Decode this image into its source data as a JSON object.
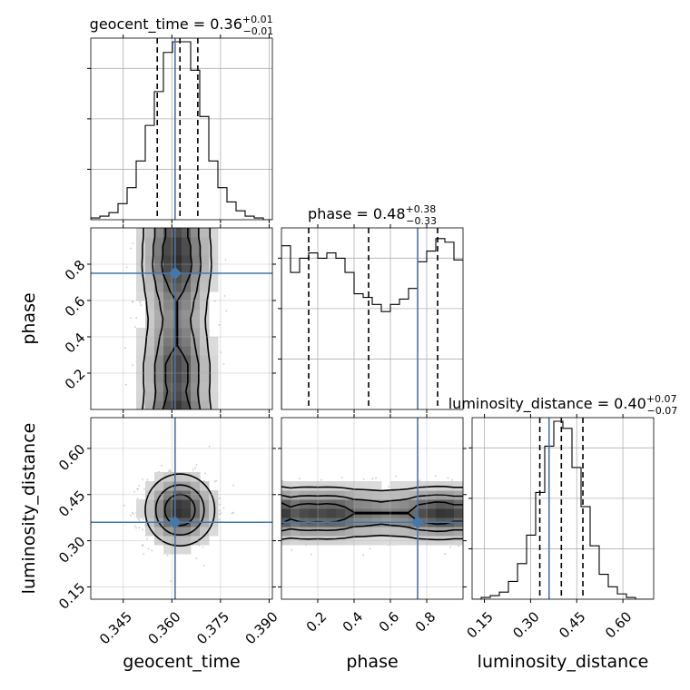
{
  "chart_data": {
    "type": "corner",
    "parameters": [
      "geocent_time",
      "phase",
      "luminosity_distance"
    ],
    "axis_labels": [
      "geocent_time",
      "phase",
      "luminosity_distance"
    ],
    "truths": [
      0.361,
      0.75,
      0.36
    ],
    "truth_color": "#4477aa",
    "ranges": [
      [
        0.335,
        0.391
      ],
      [
        0.0,
        1.0
      ],
      [
        0.11,
        0.7
      ]
    ],
    "ticks": [
      [
        0.345,
        0.36,
        0.375,
        0.39
      ],
      [
        0.2,
        0.4,
        0.6,
        0.8
      ],
      [
        0.15,
        0.3,
        0.45,
        0.6
      ]
    ],
    "tick_labels": [
      [
        "0.345",
        "0.360",
        "0.375",
        "0.390"
      ],
      [
        "0.2",
        "0.4",
        "0.6",
        "0.8"
      ],
      [
        "0.15",
        "0.30",
        "0.45",
        "0.60"
      ]
    ],
    "titles": [
      {
        "prefix": "geocent_time = ",
        "median": "0.36",
        "plus": "+0.01",
        "minus": "−0.01"
      },
      {
        "prefix": "phase = ",
        "median": "0.48",
        "plus": "+0.38",
        "minus": "−0.33"
      },
      {
        "prefix": "luminosity_distance = ",
        "median": "0.40",
        "plus": "+0.07",
        "minus": "−0.07"
      }
    ],
    "quantile_lines": [
      [
        0.3555,
        0.3625,
        0.368
      ],
      [
        0.15,
        0.48,
        0.86
      ],
      [
        0.33,
        0.4,
        0.47
      ]
    ],
    "histograms": [
      {
        "edges_start": 0.335,
        "bin_width": 0.0028,
        "counts": [
          0.01,
          0.02,
          0.04,
          0.09,
          0.18,
          0.33,
          0.53,
          0.72,
          0.94,
          1.0,
          1.0,
          0.84,
          0.58,
          0.33,
          0.18,
          0.1,
          0.05,
          0.02,
          0.01,
          0.0
        ]
      },
      {
        "edges_start": 0.0,
        "bin_width": 0.05,
        "counts": [
          0.92,
          0.77,
          0.85,
          0.88,
          0.85,
          0.88,
          0.85,
          0.77,
          0.65,
          0.63,
          0.59,
          0.55,
          0.59,
          0.62,
          0.68,
          0.83,
          0.89,
          0.96,
          0.94,
          0.84
        ]
      },
      {
        "edges_start": 0.11,
        "bin_width": 0.0295,
        "counts": [
          0.0,
          0.01,
          0.02,
          0.04,
          0.1,
          0.2,
          0.36,
          0.6,
          0.86,
          1.0,
          0.96,
          0.74,
          0.52,
          0.3,
          0.14,
          0.07,
          0.03,
          0.01,
          0.0,
          0.0
        ]
      }
    ],
    "hist2d": [
      {
        "x": "geocent_time",
        "y": "phase",
        "x_center": 0.3615,
        "x_sigma": 0.0055,
        "y_profile": [
          0.95,
          0.85,
          0.8,
          0.85,
          0.85,
          0.85,
          0.75,
          0.68,
          0.63,
          0.56,
          0.54,
          0.6,
          0.64,
          0.75,
          0.82,
          0.95,
          1.0,
          0.95,
          0.95,
          0.85
        ]
      },
      {
        "x": "geocent_time",
        "y": "luminosity_distance",
        "x_center": 0.3625,
        "x_sigma": 0.0055,
        "y_center": 0.4,
        "y_sigma": 0.06
      },
      {
        "x": "phase",
        "y": "luminosity_distance",
        "y_center": 0.39,
        "y_sigma": 0.045,
        "x_profile": [
          0.92,
          0.77,
          0.85,
          0.88,
          0.85,
          0.88,
          0.85,
          0.77,
          0.65,
          0.63,
          0.59,
          0.55,
          0.59,
          0.62,
          0.68,
          0.83,
          0.89,
          0.96,
          0.94,
          0.84
        ]
      }
    ],
    "grid": true
  }
}
